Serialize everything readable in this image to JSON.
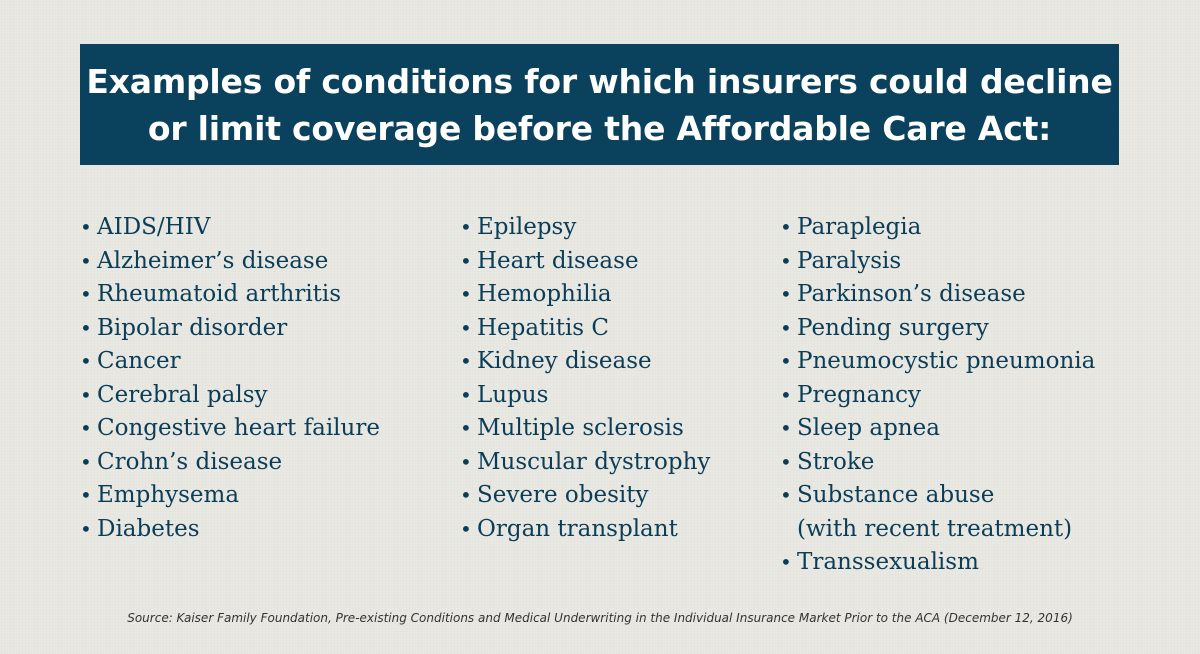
{
  "title": {
    "line1": "Examples of conditions for which insurers could decline",
    "line2": "or limit coverage before the Affordable Care Act:"
  },
  "bullet_char": "•",
  "columns": [
    {
      "items": [
        {
          "label": "AIDS/HIV"
        },
        {
          "label": "Alzheimer’s disease"
        },
        {
          "label": "Rheumatoid arthritis"
        },
        {
          "label": "Bipolar disorder"
        },
        {
          "label": "Cancer"
        },
        {
          "label": "Cerebral palsy"
        },
        {
          "label": "Congestive heart failure"
        },
        {
          "label": "Crohn’s disease"
        },
        {
          "label": "Emphysema"
        },
        {
          "label": "Diabetes"
        }
      ]
    },
    {
      "items": [
        {
          "label": "Epilepsy"
        },
        {
          "label": "Heart disease"
        },
        {
          "label": "Hemophilia"
        },
        {
          "label": "Hepatitis C"
        },
        {
          "label": "Kidney disease"
        },
        {
          "label": "Lupus"
        },
        {
          "label": "Multiple sclerosis"
        },
        {
          "label": "Muscular dystrophy"
        },
        {
          "label": "Severe obesity"
        },
        {
          "label": "Organ transplant"
        }
      ]
    },
    {
      "items": [
        {
          "label": "Paraplegia"
        },
        {
          "label": "Paralysis"
        },
        {
          "label": "Parkinson’s disease"
        },
        {
          "label": "Pending surgery"
        },
        {
          "label": "Pneumocystic pneumonia"
        },
        {
          "label": "Pregnancy"
        },
        {
          "label": "Sleep apnea"
        },
        {
          "label": "Stroke"
        },
        {
          "label": "Substance abuse",
          "continuation": "(with recent treatment)"
        },
        {
          "label": "Transsexualism"
        }
      ]
    }
  ],
  "source": "Source:  Kaiser Family Foundation, Pre-existing Conditions and Medical Underwriting in the Individual Insurance Market Prior to the ACA (December 12, 2016)",
  "colors": {
    "banner": "#0a415c",
    "text": "#0b3d57",
    "background": "#e9e8e3"
  }
}
